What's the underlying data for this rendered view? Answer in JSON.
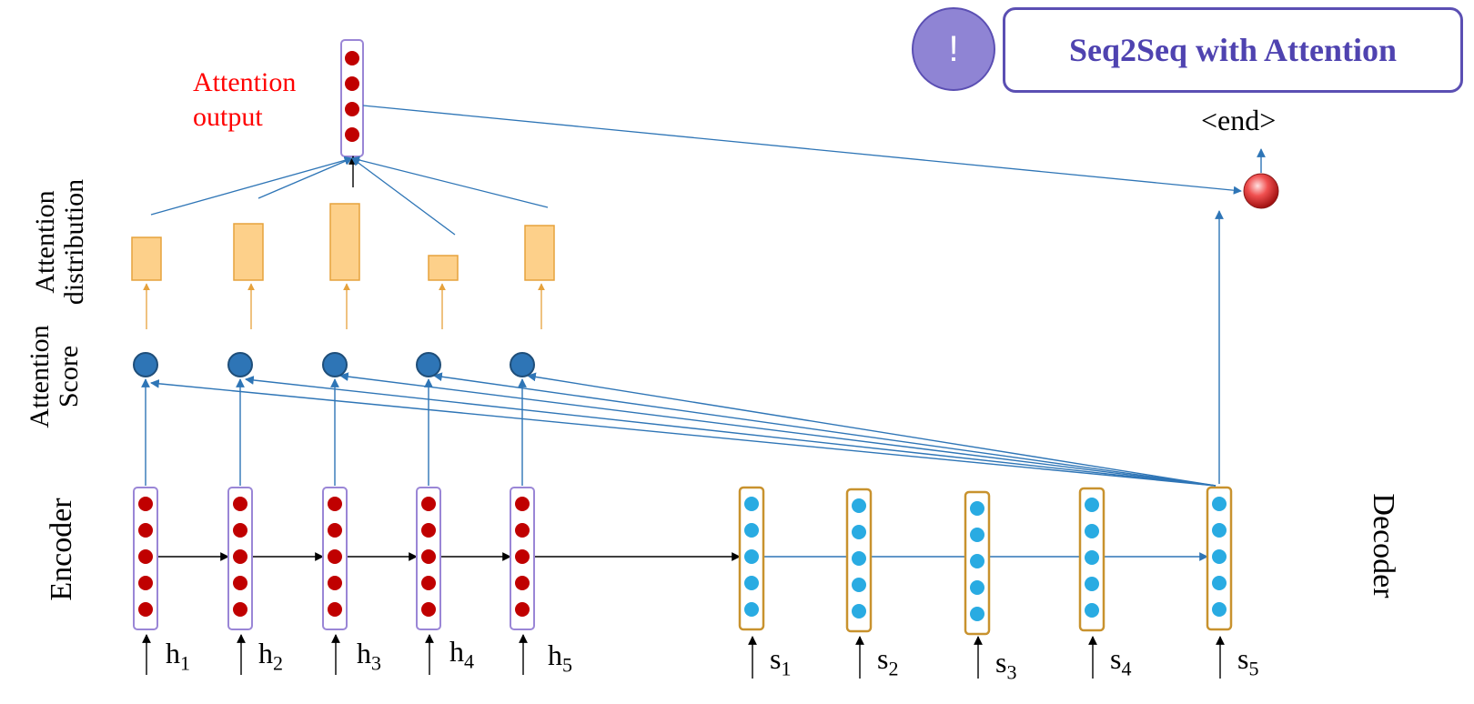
{
  "badge": {
    "icon": "!"
  },
  "title": "Seq2Seq with Attention",
  "attention_output_label": "Attention output",
  "attention_distribution_label": [
    "Attention",
    "distribution"
  ],
  "attention_score_label": [
    "Attention",
    "Score"
  ],
  "encoder_label": "Encoder",
  "decoder_label": "Decoder",
  "end_label": "<end>",
  "encoder_inputs": [
    {
      "base": "h",
      "sub": "1"
    },
    {
      "base": "h",
      "sub": "2"
    },
    {
      "base": "h",
      "sub": "3"
    },
    {
      "base": "h",
      "sub": "4"
    },
    {
      "base": "h",
      "sub": "5"
    }
  ],
  "decoder_inputs": [
    {
      "base": "s",
      "sub": "1"
    },
    {
      "base": "s",
      "sub": "2"
    },
    {
      "base": "s",
      "sub": "3"
    },
    {
      "base": "s",
      "sub": "4"
    },
    {
      "base": "s",
      "sub": "5"
    }
  ],
  "attention_weights": [
    0.42,
    0.55,
    0.75,
    0.24,
    0.54
  ],
  "colors": {
    "encoder_dot": "#c00000",
    "encoder_border": "#9a86d6",
    "decoder_dot": "#29abe2",
    "decoder_border": "#c8922e",
    "score_node": "#2e75b6",
    "dist_bar_fill": "#fdd08a",
    "dist_bar_border": "#e6a23c",
    "arrow_blue": "#2e75b6",
    "output_node": "#d92b2b",
    "label_red": "#ff0000",
    "title_purple": "#4f43b0"
  }
}
